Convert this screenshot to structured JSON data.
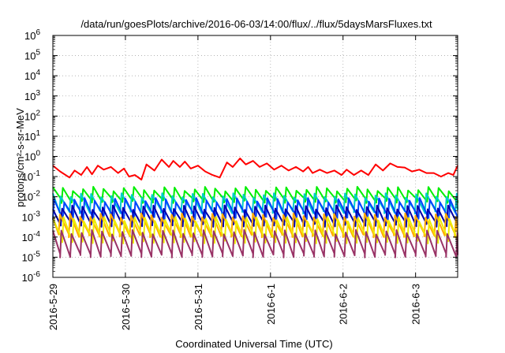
{
  "chart_data": {
    "type": "line",
    "title": "/data/run/goesPlots/archive/2016-06-03/14:00/flux/../flux/5daysMarsFluxes.txt",
    "xlabel": "Coordinated Universal Time (UTC)",
    "ylabel": "protons/cm²-s-sr-MeV",
    "yscale": "log",
    "ylim": [
      1e-06,
      1000000.0
    ],
    "ytick_exponents": [
      "-6",
      "-5",
      "-4",
      "-3",
      "-2",
      "-1",
      "0",
      "1",
      "2",
      "3",
      "4",
      "5",
      "6"
    ],
    "xlim": [
      "2016-05-29 00:00",
      "2016-06-03 14:00"
    ],
    "xticks": [
      "2016-5-29",
      "2016-5-30",
      "2016-5-31",
      "2016-6-1",
      "2016-6-2",
      "2016-6-3"
    ],
    "grid": true,
    "colors": {
      "red": "#ff0000",
      "green": "#00ee00",
      "cyan": "#00cccc",
      "blue": "#0044ff",
      "navy": "#0000aa",
      "yellow": "#eeee00",
      "orange": "#ffaa00",
      "purple": "#993366"
    },
    "series": [
      {
        "color": "#ff0000",
        "x_days": [
          0.0,
          0.1,
          0.23,
          0.3,
          0.39,
          0.47,
          0.54,
          0.62,
          0.7,
          0.8,
          0.9,
          0.98,
          1.05,
          1.13,
          1.22,
          1.29,
          1.4,
          1.5,
          1.6,
          1.66,
          1.75,
          1.82,
          1.9,
          2.0,
          2.1,
          2.2,
          2.3,
          2.4,
          2.48,
          2.58,
          2.66,
          2.76,
          2.85,
          2.95,
          3.05,
          3.15,
          3.25,
          3.35,
          3.45,
          3.52,
          3.58,
          3.68,
          3.78,
          3.88,
          3.98,
          4.05,
          4.15,
          4.25,
          4.35,
          4.45,
          4.55,
          4.65,
          4.75,
          4.85,
          4.95,
          5.05,
          5.15,
          5.25,
          5.35,
          5.45,
          5.52,
          5.58
        ],
        "y": [
          0.35,
          0.18,
          0.09,
          0.2,
          0.12,
          0.3,
          0.13,
          0.35,
          0.22,
          0.3,
          0.15,
          0.25,
          0.1,
          0.12,
          0.07,
          0.4,
          0.2,
          0.7,
          0.3,
          0.6,
          0.3,
          0.55,
          0.25,
          0.35,
          0.18,
          0.12,
          0.09,
          0.5,
          0.3,
          0.8,
          0.4,
          0.6,
          0.3,
          0.45,
          0.22,
          0.35,
          0.2,
          0.3,
          0.18,
          0.3,
          0.15,
          0.22,
          0.15,
          0.2,
          0.12,
          0.22,
          0.12,
          0.2,
          0.12,
          0.4,
          0.2,
          0.45,
          0.3,
          0.28,
          0.18,
          0.22,
          0.15,
          0.15,
          0.1,
          0.15,
          0.12,
          0.35
        ]
      },
      {
        "color": "#00ee00",
        "base": 0.006,
        "peak": 0.025,
        "offset": 0.02
      },
      {
        "color": "#00cccc",
        "base": 0.0018,
        "peak": 0.012,
        "offset": 0.05
      },
      {
        "color": "#0044ff",
        "base": 0.0009,
        "peak": 0.007,
        "offset": 0.0
      },
      {
        "color": "#0000aa",
        "base": 0.0004,
        "peak": 0.003,
        "offset": 0.03
      },
      {
        "color": "#ffaa00",
        "base": 0.00012,
        "peak": 0.0012,
        "offset": 0.06
      },
      {
        "color": "#eeee00",
        "base": 6e-05,
        "peak": 0.0008,
        "offset": 0.01
      },
      {
        "color": "#993366",
        "base": 1.2e-05,
        "peak": 0.00018,
        "offset": 0.04
      }
    ],
    "sawtooth_period_days": 0.14,
    "x_span_days": 5.58
  }
}
